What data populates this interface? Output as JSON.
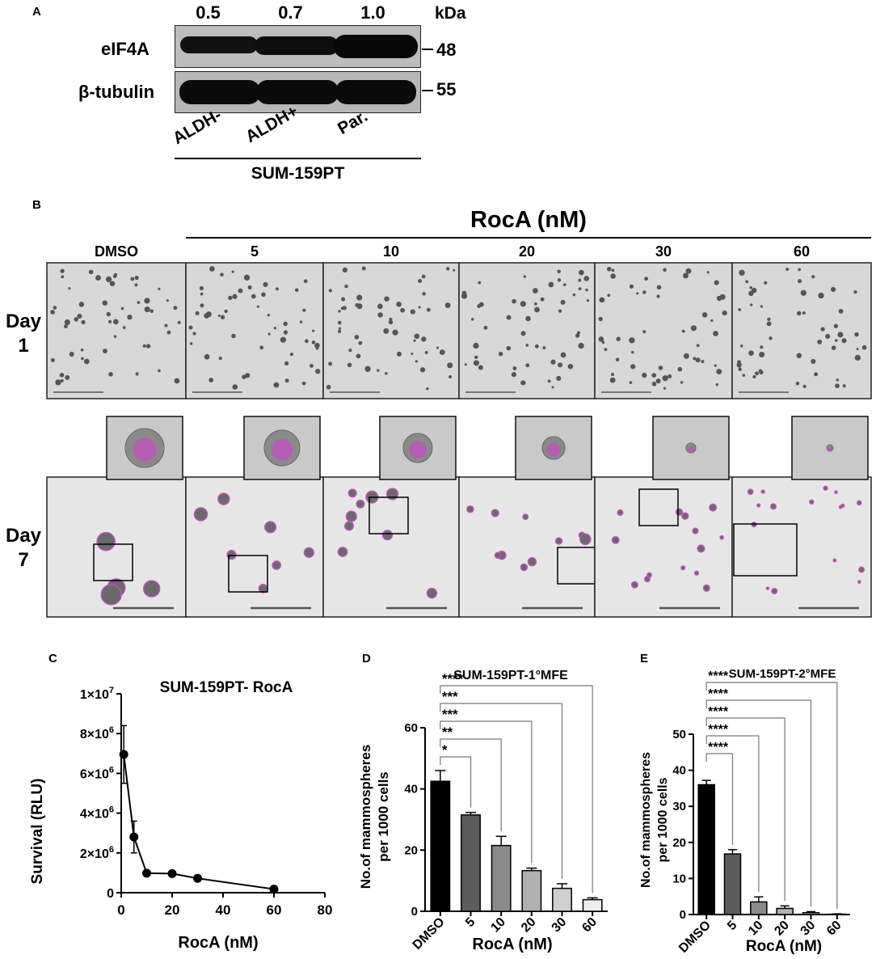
{
  "panel_letters": {
    "a": "A",
    "b": "B",
    "c": "C",
    "d": "D",
    "e": "E"
  },
  "panel_a": {
    "ratios": [
      "0.5",
      "0.7",
      "1.0"
    ],
    "kda_label": "kDa",
    "rows": [
      {
        "protein": "eIF4A",
        "mw": "48",
        "band_intensity": [
          0.5,
          0.7,
          1.0
        ]
      },
      {
        "protein": "β-tubulin",
        "mw": "55",
        "band_intensity": [
          1.0,
          1.0,
          1.0
        ]
      }
    ],
    "lanes": [
      "ALDH-",
      "ALDH+",
      "Par."
    ],
    "cell_line": "SUM-159PT"
  },
  "panel_b": {
    "group_title": "RocA (nM)",
    "columns": [
      "DMSO",
      "5",
      "10",
      "20",
      "30",
      "60"
    ],
    "rows": [
      {
        "word": "Day",
        "num": "1"
      },
      {
        "word": "Day",
        "num": "7"
      }
    ],
    "colors": {
      "sphere": "#c04fc0",
      "field": "#d8d8d8"
    }
  },
  "chart_data": [
    {
      "id": "C",
      "type": "line",
      "title": "SUM-159PT- RocA",
      "xlabel": "RocA (nM)",
      "ylabel": "Survival (RLU)",
      "xlim": [
        0,
        80
      ],
      "ylim": [
        0,
        10000000
      ],
      "x_ticks": [
        "0",
        "20",
        "40",
        "60",
        "80"
      ],
      "y_ticks": [
        {
          "base": "0",
          "exp": ""
        },
        {
          "base": "2×10",
          "exp": "6"
        },
        {
          "base": "4×10",
          "exp": "6"
        },
        {
          "base": "6×10",
          "exp": "6"
        },
        {
          "base": "8×10",
          "exp": "6"
        },
        {
          "base": "1×10",
          "exp": "7"
        }
      ],
      "x": [
        1,
        5,
        10,
        20,
        30,
        60
      ],
      "y": [
        6950000,
        2800000,
        980000,
        960000,
        720000,
        180000
      ],
      "error": [
        1450000,
        800000,
        0,
        0,
        0,
        0
      ]
    },
    {
      "id": "D",
      "type": "bar",
      "title": "SUM-159PT-1°MFE",
      "xlabel": "RocA (nM)",
      "ylabel_lines": [
        "No.of mammospheres",
        "per 1000 cells"
      ],
      "categories": [
        "DMSO",
        "5",
        "10",
        "20",
        "30",
        "60"
      ],
      "values": [
        42.5,
        31.5,
        21.5,
        13.3,
        7.5,
        3.8
      ],
      "errors": [
        3.5,
        0.8,
        3.0,
        0.8,
        1.5,
        0.6
      ],
      "ylim": [
        0,
        60
      ],
      "y_ticks": [
        "0",
        "20",
        "40",
        "60"
      ],
      "bar_colors": [
        "#000000",
        "#5c5c5c",
        "#8a8a8a",
        "#b0b0b0",
        "#cfcfcf",
        "#ededed"
      ],
      "significance": [
        {
          "to": "60",
          "stars": "****"
        },
        {
          "to": "30",
          "stars": "***"
        },
        {
          "to": "20",
          "stars": "***"
        },
        {
          "to": "10",
          "stars": "**"
        },
        {
          "to": "5",
          "stars": "*"
        }
      ]
    },
    {
      "id": "E",
      "type": "bar",
      "title": "SUM-159PT-2°MFE",
      "xlabel": "RocA (nM)",
      "ylabel_lines": [
        "No.of mammospheres",
        "per 1000 cells"
      ],
      "categories": [
        "DMSO",
        "5",
        "10",
        "20",
        "30",
        "60"
      ],
      "values": [
        36,
        16.8,
        3.5,
        1.7,
        0.5,
        0.1
      ],
      "errors": [
        1.2,
        1.2,
        1.4,
        0.7,
        0.3,
        0.1
      ],
      "ylim": [
        0,
        50
      ],
      "y_ticks": [
        "0",
        "10",
        "20",
        "30",
        "40",
        "50"
      ],
      "bar_colors": [
        "#000000",
        "#5c5c5c",
        "#8a8a8a",
        "#b0b0b0",
        "#cfcfcf",
        "#ededed"
      ],
      "significance": [
        {
          "to": "60",
          "stars": "****"
        },
        {
          "to": "30",
          "stars": "****"
        },
        {
          "to": "20",
          "stars": "****"
        },
        {
          "to": "10",
          "stars": "****"
        },
        {
          "to": "5",
          "stars": "****"
        }
      ]
    }
  ]
}
